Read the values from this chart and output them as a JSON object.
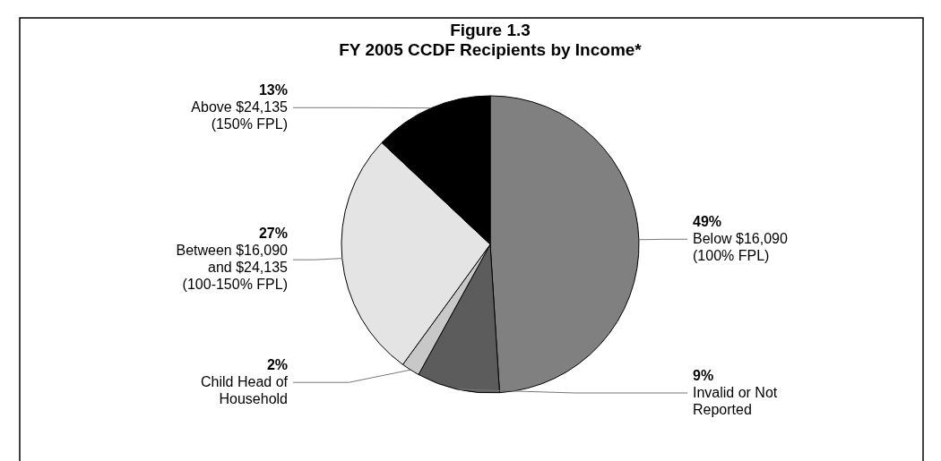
{
  "chart_data": {
    "type": "pie",
    "title": "Figure 1.3\nFY 2005 CCDF Recipients by Income*",
    "categories": [
      "Below $16,090\n(100% FPL)",
      "Invalid or Not\nReported",
      "Child Head of\nHousehold",
      "Between $16,090\nand $24,135\n(100-150% FPL)",
      "Above $24,135\n(150% FPL)"
    ],
    "values": [
      49,
      9,
      2,
      27,
      13
    ],
    "value_labels": [
      "49%",
      "9%",
      "2%",
      "27%",
      "13%"
    ],
    "colors": [
      "#808080",
      "#5c5c5c",
      "#c8c8c8",
      "#e4e4e4",
      "#000000"
    ],
    "legend": false
  }
}
